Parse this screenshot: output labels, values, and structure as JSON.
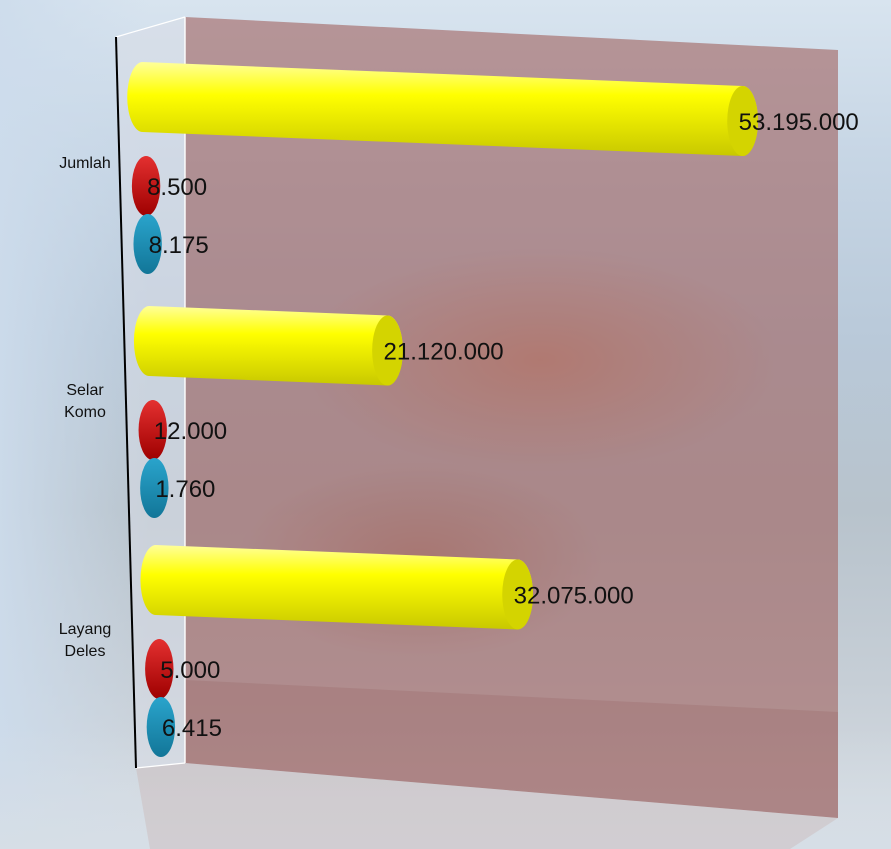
{
  "chart_data": {
    "type": "bar",
    "orientation": "horizontal",
    "style": "3d-cylinder",
    "categories": [
      {
        "lines": [
          "Jumlah"
        ]
      },
      {
        "lines": [
          "Selar",
          "Komo"
        ]
      },
      {
        "lines": [
          "Layang",
          "Deles"
        ]
      }
    ],
    "series": [
      {
        "color": "#ffff00",
        "values": [
          53195000,
          21120000,
          32075000
        ],
        "labels": [
          "53.195.000",
          "21.120.000",
          "32.075.000"
        ]
      },
      {
        "color": "#c00000",
        "values": [
          8500,
          12000,
          5000
        ],
        "labels": [
          "8.500",
          "12.000",
          "5.000"
        ]
      },
      {
        "color": "#1b8fb5",
        "values": [
          8175,
          1760,
          6415
        ],
        "labels": [
          "8.175",
          "1.760",
          "6.415"
        ]
      }
    ],
    "xlim": [
      0,
      53195000
    ],
    "legend": "none",
    "grid": false,
    "colors": {
      "back_wall": "#a0605e",
      "side_wall": "#d8dde6",
      "axis_line": "#000000"
    }
  }
}
